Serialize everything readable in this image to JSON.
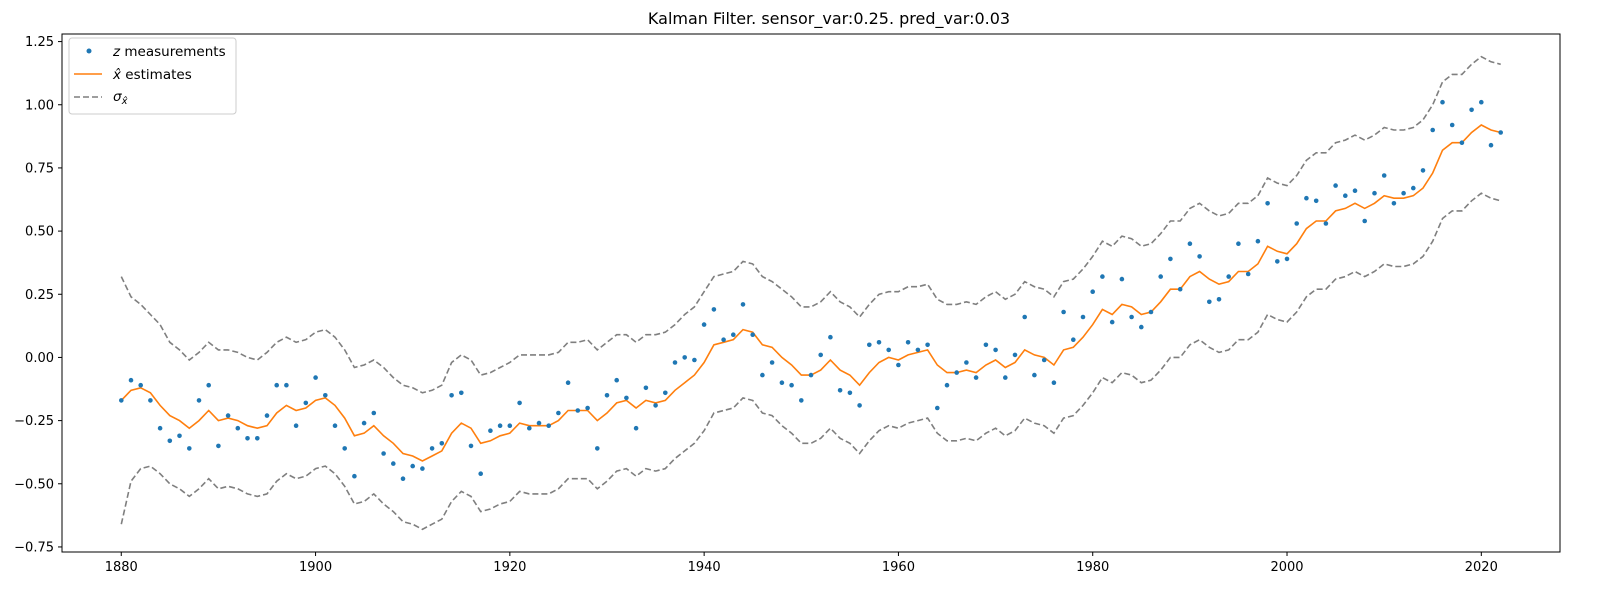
{
  "chart_data": {
    "type": "line",
    "title": "Kalman Filter. sensor_var:0.25. pred_var:0.03",
    "xlabel": "",
    "ylabel": "",
    "xlim": [
      1873.9,
      2028.1
    ],
    "ylim": [
      -0.77,
      1.28
    ],
    "xticks": [
      1880,
      1900,
      1920,
      1940,
      1960,
      1980,
      2000,
      2020
    ],
    "xtick_labels": [
      "1880",
      "1900",
      "1920",
      "1940",
      "1960",
      "1980",
      "2000",
      "2020"
    ],
    "yticks": [
      -0.75,
      -0.5,
      -0.25,
      0.0,
      0.25,
      0.5,
      0.75,
      1.0,
      1.25
    ],
    "ytick_labels": [
      "−0.75",
      "−0.50",
      "−0.25",
      "0.00",
      "0.25",
      "0.50",
      "0.75",
      "1.00",
      "1.25"
    ],
    "legend_position": "top-left",
    "grid": false,
    "colors": {
      "measurements": "#1f77b4",
      "estimates": "#ff7f0e",
      "sigma": "#7f7f7f"
    },
    "x": [
      1880,
      1881,
      1882,
      1883,
      1884,
      1885,
      1886,
      1887,
      1888,
      1889,
      1890,
      1891,
      1892,
      1893,
      1894,
      1895,
      1896,
      1897,
      1898,
      1899,
      1900,
      1901,
      1902,
      1903,
      1904,
      1905,
      1906,
      1907,
      1908,
      1909,
      1910,
      1911,
      1912,
      1913,
      1914,
      1915,
      1916,
      1917,
      1918,
      1919,
      1920,
      1921,
      1922,
      1923,
      1924,
      1925,
      1926,
      1927,
      1928,
      1929,
      1930,
      1931,
      1932,
      1933,
      1934,
      1935,
      1936,
      1937,
      1938,
      1939,
      1940,
      1941,
      1942,
      1943,
      1944,
      1945,
      1946,
      1947,
      1948,
      1949,
      1950,
      1951,
      1952,
      1953,
      1954,
      1955,
      1956,
      1957,
      1958,
      1959,
      1960,
      1961,
      1962,
      1963,
      1964,
      1965,
      1966,
      1967,
      1968,
      1969,
      1970,
      1971,
      1972,
      1973,
      1974,
      1975,
      1976,
      1977,
      1978,
      1979,
      1980,
      1981,
      1982,
      1983,
      1984,
      1985,
      1986,
      1987,
      1988,
      1989,
      1990,
      1991,
      1992,
      1993,
      1994,
      1995,
      1996,
      1997,
      1998,
      1999,
      2000,
      2001,
      2002,
      2003,
      2004,
      2005,
      2006,
      2007,
      2008,
      2009,
      2010,
      2011,
      2012,
      2013,
      2014,
      2015,
      2016,
      2017,
      2018,
      2019,
      2020,
      2021,
      2022
    ],
    "series": [
      {
        "name": "z measurements",
        "kind": "scatter",
        "values": [
          -0.17,
          -0.09,
          -0.11,
          -0.17,
          -0.28,
          -0.33,
          -0.31,
          -0.36,
          -0.17,
          -0.11,
          -0.35,
          -0.23,
          -0.28,
          -0.32,
          -0.32,
          -0.23,
          -0.11,
          -0.11,
          -0.27,
          -0.18,
          -0.08,
          -0.15,
          -0.27,
          -0.36,
          -0.47,
          -0.26,
          -0.22,
          -0.38,
          -0.42,
          -0.48,
          -0.43,
          -0.44,
          -0.36,
          -0.34,
          -0.15,
          -0.14,
          -0.35,
          -0.46,
          -0.29,
          -0.27,
          -0.27,
          -0.18,
          -0.28,
          -0.26,
          -0.27,
          -0.22,
          -0.1,
          -0.21,
          -0.2,
          -0.36,
          -0.15,
          -0.09,
          -0.16,
          -0.28,
          -0.12,
          -0.19,
          -0.14,
          -0.02,
          0.0,
          -0.01,
          0.13,
          0.19,
          0.07,
          0.09,
          0.21,
          0.09,
          -0.07,
          -0.02,
          -0.1,
          -0.11,
          -0.17,
          -0.07,
          0.01,
          0.08,
          -0.13,
          -0.14,
          -0.19,
          0.05,
          0.06,
          0.03,
          -0.03,
          0.06,
          0.03,
          0.05,
          -0.2,
          -0.11,
          -0.06,
          -0.02,
          -0.08,
          0.05,
          0.03,
          -0.08,
          0.01,
          0.16,
          -0.07,
          -0.01,
          -0.1,
          0.18,
          0.07,
          0.16,
          0.26,
          0.32,
          0.14,
          0.31,
          0.16,
          0.12,
          0.18,
          0.32,
          0.39,
          0.27,
          0.45,
          0.4,
          0.22,
          0.23,
          0.32,
          0.45,
          0.33,
          0.46,
          0.61,
          0.38,
          0.39,
          0.53,
          0.63,
          0.62,
          0.53,
          0.68,
          0.64,
          0.66,
          0.54,
          0.65,
          0.72,
          0.61,
          0.65,
          0.67,
          0.74,
          0.9,
          1.01,
          0.92,
          0.85,
          0.98,
          1.01,
          0.84,
          0.89
        ]
      },
      {
        "name": "x̂ estimates",
        "kind": "line",
        "values": [
          -0.17,
          -0.13,
          -0.12,
          -0.14,
          -0.19,
          -0.23,
          -0.25,
          -0.28,
          -0.25,
          -0.21,
          -0.25,
          -0.24,
          -0.25,
          -0.27,
          -0.28,
          -0.27,
          -0.22,
          -0.19,
          -0.21,
          -0.2,
          -0.17,
          -0.16,
          -0.19,
          -0.24,
          -0.31,
          -0.3,
          -0.27,
          -0.31,
          -0.34,
          -0.38,
          -0.39,
          -0.41,
          -0.39,
          -0.37,
          -0.3,
          -0.26,
          -0.28,
          -0.34,
          -0.33,
          -0.31,
          -0.3,
          -0.26,
          -0.27,
          -0.27,
          -0.27,
          -0.25,
          -0.21,
          -0.21,
          -0.21,
          -0.25,
          -0.22,
          -0.18,
          -0.17,
          -0.2,
          -0.17,
          -0.18,
          -0.17,
          -0.13,
          -0.1,
          -0.07,
          -0.02,
          0.05,
          0.06,
          0.07,
          0.11,
          0.1,
          0.05,
          0.04,
          0.0,
          -0.03,
          -0.07,
          -0.07,
          -0.05,
          -0.01,
          -0.05,
          -0.07,
          -0.11,
          -0.06,
          -0.02,
          0.0,
          -0.01,
          0.01,
          0.02,
          0.03,
          -0.03,
          -0.06,
          -0.06,
          -0.05,
          -0.06,
          -0.03,
          -0.01,
          -0.04,
          -0.02,
          0.03,
          0.01,
          0.0,
          -0.03,
          0.03,
          0.04,
          0.08,
          0.13,
          0.19,
          0.17,
          0.21,
          0.2,
          0.17,
          0.18,
          0.22,
          0.27,
          0.27,
          0.32,
          0.34,
          0.31,
          0.29,
          0.3,
          0.34,
          0.34,
          0.37,
          0.44,
          0.42,
          0.41,
          0.45,
          0.51,
          0.54,
          0.54,
          0.58,
          0.59,
          0.61,
          0.59,
          0.61,
          0.64,
          0.63,
          0.63,
          0.64,
          0.67,
          0.73,
          0.82,
          0.85,
          0.85,
          0.89,
          0.92,
          0.9,
          0.89
        ]
      },
      {
        "name": "σx̂",
        "kind": "band",
        "upper": [
          0.32,
          0.24,
          0.21,
          0.17,
          0.13,
          0.06,
          0.03,
          -0.01,
          0.02,
          0.06,
          0.03,
          0.03,
          0.02,
          0.0,
          -0.01,
          0.02,
          0.06,
          0.08,
          0.06,
          0.07,
          0.1,
          0.11,
          0.08,
          0.03,
          -0.04,
          -0.03,
          -0.01,
          -0.04,
          -0.08,
          -0.11,
          -0.12,
          -0.14,
          -0.13,
          -0.11,
          -0.02,
          0.01,
          -0.01,
          -0.07,
          -0.06,
          -0.04,
          -0.02,
          0.01,
          0.01,
          0.01,
          0.01,
          0.02,
          0.06,
          0.06,
          0.07,
          0.03,
          0.06,
          0.09,
          0.09,
          0.06,
          0.09,
          0.09,
          0.1,
          0.13,
          0.17,
          0.2,
          0.26,
          0.32,
          0.33,
          0.34,
          0.38,
          0.37,
          0.32,
          0.3,
          0.27,
          0.24,
          0.2,
          0.2,
          0.22,
          0.26,
          0.22,
          0.2,
          0.16,
          0.21,
          0.25,
          0.26,
          0.26,
          0.28,
          0.28,
          0.29,
          0.23,
          0.21,
          0.21,
          0.22,
          0.21,
          0.24,
          0.26,
          0.23,
          0.25,
          0.3,
          0.28,
          0.27,
          0.24,
          0.3,
          0.31,
          0.35,
          0.4,
          0.46,
          0.44,
          0.48,
          0.47,
          0.44,
          0.45,
          0.49,
          0.54,
          0.54,
          0.59,
          0.61,
          0.58,
          0.56,
          0.57,
          0.61,
          0.61,
          0.64,
          0.71,
          0.69,
          0.68,
          0.72,
          0.78,
          0.81,
          0.81,
          0.85,
          0.86,
          0.88,
          0.86,
          0.88,
          0.91,
          0.9,
          0.9,
          0.91,
          0.94,
          1.0,
          1.09,
          1.12,
          1.12,
          1.16,
          1.19,
          1.17,
          1.16
        ],
        "lower": [
          -0.66,
          -0.49,
          -0.44,
          -0.43,
          -0.46,
          -0.5,
          -0.52,
          -0.55,
          -0.52,
          -0.48,
          -0.52,
          -0.51,
          -0.52,
          -0.54,
          -0.55,
          -0.54,
          -0.49,
          -0.46,
          -0.48,
          -0.47,
          -0.44,
          -0.43,
          -0.46,
          -0.51,
          -0.58,
          -0.57,
          -0.54,
          -0.58,
          -0.61,
          -0.65,
          -0.66,
          -0.68,
          -0.66,
          -0.64,
          -0.57,
          -0.53,
          -0.55,
          -0.61,
          -0.6,
          -0.58,
          -0.57,
          -0.53,
          -0.54,
          -0.54,
          -0.54,
          -0.52,
          -0.48,
          -0.48,
          -0.48,
          -0.52,
          -0.49,
          -0.45,
          -0.44,
          -0.47,
          -0.44,
          -0.45,
          -0.44,
          -0.4,
          -0.37,
          -0.34,
          -0.29,
          -0.22,
          -0.21,
          -0.2,
          -0.16,
          -0.17,
          -0.22,
          -0.23,
          -0.27,
          -0.3,
          -0.34,
          -0.34,
          -0.32,
          -0.28,
          -0.32,
          -0.34,
          -0.38,
          -0.33,
          -0.29,
          -0.27,
          -0.28,
          -0.26,
          -0.25,
          -0.24,
          -0.3,
          -0.33,
          -0.33,
          -0.32,
          -0.33,
          -0.3,
          -0.28,
          -0.31,
          -0.29,
          -0.24,
          -0.26,
          -0.27,
          -0.3,
          -0.24,
          -0.23,
          -0.19,
          -0.14,
          -0.08,
          -0.1,
          -0.06,
          -0.07,
          -0.1,
          -0.09,
          -0.05,
          0.0,
          0.0,
          0.05,
          0.07,
          0.04,
          0.02,
          0.03,
          0.07,
          0.07,
          0.1,
          0.17,
          0.15,
          0.14,
          0.18,
          0.24,
          0.27,
          0.27,
          0.31,
          0.32,
          0.34,
          0.32,
          0.34,
          0.37,
          0.36,
          0.36,
          0.37,
          0.4,
          0.46,
          0.55,
          0.58,
          0.58,
          0.62,
          0.65,
          0.63,
          0.62
        ]
      }
    ]
  }
}
